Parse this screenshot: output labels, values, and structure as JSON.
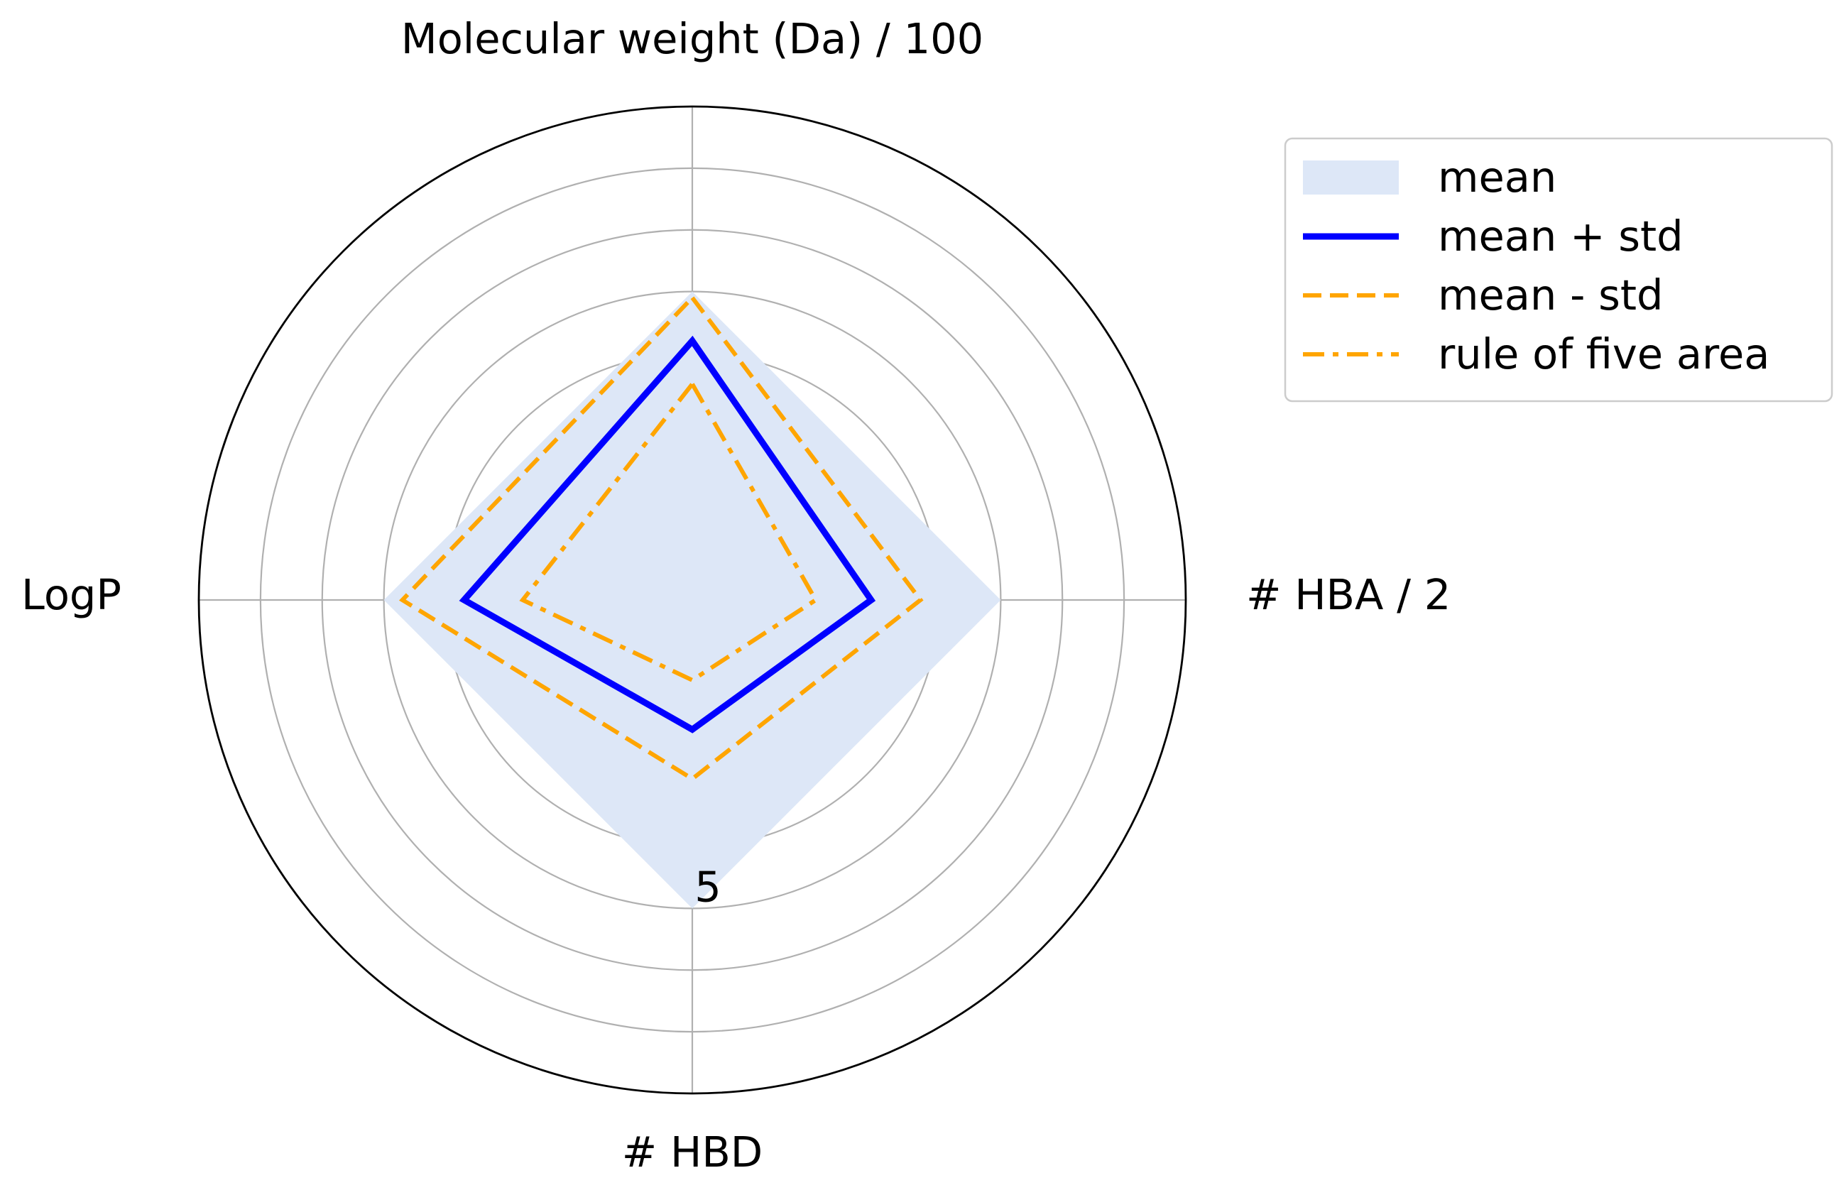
{
  "chart_data": {
    "type": "radar",
    "axes": [
      "Molecular weight (Da) / 100",
      "# HBA / 2",
      "# HBD",
      "LogP"
    ],
    "r_range": [
      0,
      8
    ],
    "r_ticks": [
      1,
      2,
      3,
      4,
      5,
      6,
      7
    ],
    "r_tick_labels_shown": [
      "5"
    ],
    "grid": true,
    "legend_position": "upper-right, outside plot",
    "series": [
      {
        "name": "mean",
        "style": "filled area",
        "color": "#dde7f7",
        "values": [
          5.0,
          5.0,
          5.0,
          5.0
        ]
      },
      {
        "name": "mean + std",
        "style": "solid",
        "color": "#0000ff",
        "values": [
          4.2,
          2.9,
          2.1,
          3.7
        ]
      },
      {
        "name": "mean - std",
        "style": "dashed",
        "color": "#ffa500",
        "values": [
          4.9,
          3.7,
          2.9,
          4.7
        ]
      },
      {
        "name": "rule of five area",
        "style": "dash-dot",
        "color": "#ffa500",
        "values": [
          3.5,
          2.0,
          1.3,
          2.75
        ]
      }
    ]
  }
}
